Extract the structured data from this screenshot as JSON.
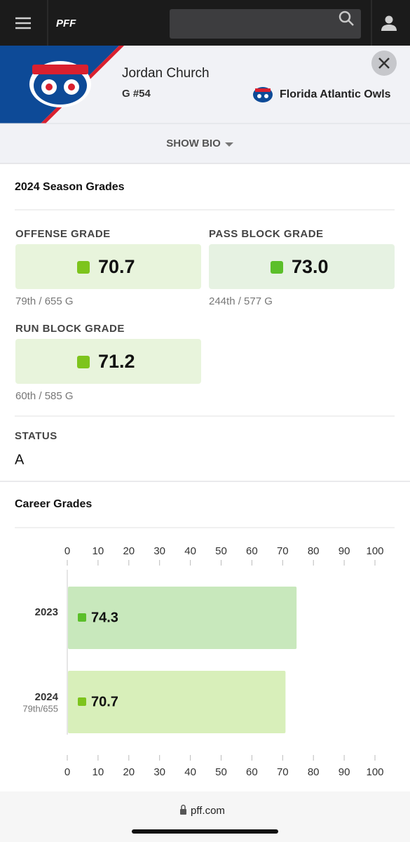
{
  "nav": {
    "logo": "PFF"
  },
  "player": {
    "name": "Jordan Church",
    "position": "G #54",
    "team": "Florida Atlantic Owls"
  },
  "show_bio": "SHOW BIO",
  "season": {
    "title": "2024 Season Grades",
    "grades": [
      {
        "label": "OFFENSE GRADE",
        "grade": "70.7",
        "rank": "79th / 655 G",
        "color": "#7dc41d",
        "box": "#e8f4dc"
      },
      {
        "label": "PASS BLOCK GRADE",
        "grade": "73.0",
        "rank": "244th / 577 G",
        "color": "#5bbf2a",
        "box": "#e6f2e2"
      },
      {
        "label": "RUN BLOCK GRADE",
        "grade": "71.2",
        "rank": "60th / 585 G",
        "color": "#7dc41d",
        "box": "#e8f4dc"
      }
    ]
  },
  "status": {
    "label": "STATUS",
    "value": "A"
  },
  "chart_data": {
    "type": "bar",
    "orientation": "horizontal",
    "title": "Career Grades",
    "categories": [
      "2023",
      "2024"
    ],
    "sublabels": [
      null,
      "79th/655"
    ],
    "values": [
      74.3,
      70.7
    ],
    "colors": [
      "#c8e8bc",
      "#d8efba"
    ],
    "marker_colors": [
      "#5bbf2a",
      "#7dc41d"
    ],
    "xlim": [
      0,
      100
    ],
    "xticks": [
      0,
      10,
      20,
      30,
      40,
      50,
      60,
      70,
      80,
      90,
      100
    ]
  },
  "footer": {
    "url": "pff.com"
  }
}
